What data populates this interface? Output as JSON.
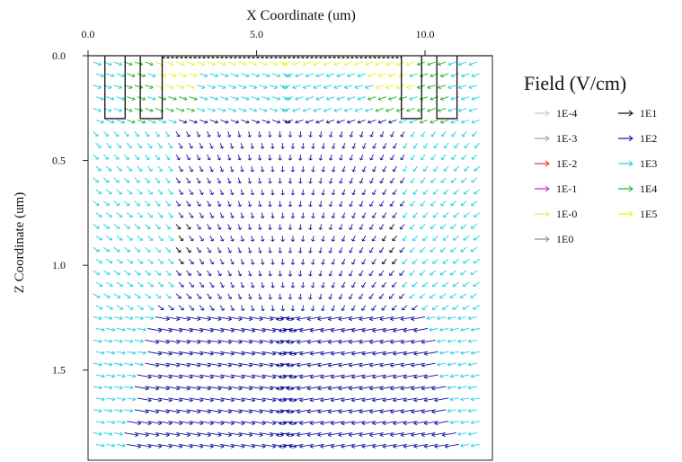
{
  "chart_data": {
    "type": "vector-field",
    "title": "",
    "xlabel": "X Coordinate (um)",
    "ylabel": "Z Coordinate (um)",
    "x_axis_position": "top",
    "x_ticks": [
      0.0,
      5.0,
      10.0
    ],
    "x_tick_labels": [
      "0.0",
      "5.0",
      "10.0"
    ],
    "xlim": [
      0.0,
      12.0
    ],
    "y_ticks": [
      0.0,
      0.5,
      1.0,
      1.5
    ],
    "y_tick_labels": [
      "0.0",
      "0.5",
      "1.0",
      "1.5"
    ],
    "ylim": [
      0.0,
      1.93
    ],
    "y_inverted": true,
    "grid": false,
    "legend": {
      "title": "Field (V/cm)",
      "placement": "right",
      "columns": [
        [
          {
            "label": "1E-4",
            "color": "#c8c8c8"
          },
          {
            "label": "1E-3",
            "color": "#a0a0a0"
          },
          {
            "label": "1E-2",
            "color": "#e03030"
          },
          {
            "label": "1E-1",
            "color": "#d020d0"
          },
          {
            "label": "1E-0",
            "color": "#e8e070"
          },
          {
            "label": "1E0",
            "color": "#8a8a8a"
          }
        ],
        [
          {
            "label": "1E1",
            "color": "#000000"
          },
          {
            "label": "1E2",
            "color": "#1010a0"
          },
          {
            "label": "1E3",
            "color": "#20d0e0"
          },
          {
            "label": "1E4",
            "color": "#20b020"
          },
          {
            "label": "1E5",
            "color": "#f0f020"
          }
        ]
      ]
    },
    "structure_outlines": {
      "trench_regions_x": [
        [
          0.5,
          1.1
        ],
        [
          1.55,
          2.2
        ],
        [
          9.3,
          9.9
        ],
        [
          10.35,
          10.95
        ]
      ],
      "trench_depth": 0.3,
      "surface_bar_x": [
        2.2,
        9.3
      ]
    },
    "field_regions": {
      "yellow_1E5": "surface band between x 2.2 and 9.3, z 0.0 to 0.05; around trenches",
      "green_1E4": "around trench edges near surface",
      "cyan_1E3": "outer columns and upper region",
      "navy_1E2": "central columns and bottom rows",
      "black_1E1": "small region near x 2.7 and 9.1, z 0.8 to 1.0"
    }
  }
}
